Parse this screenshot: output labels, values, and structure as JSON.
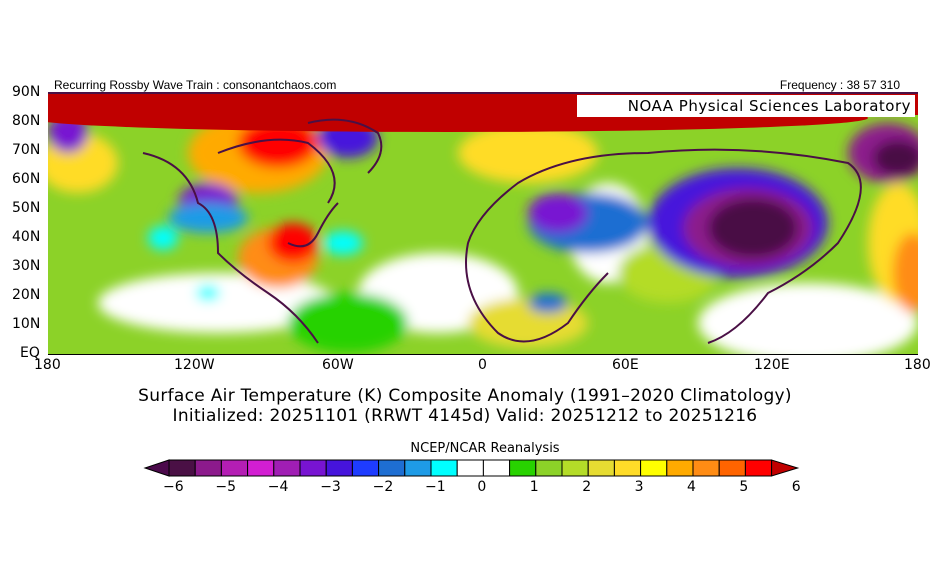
{
  "header": {
    "left_text": "Recurring Rossby Wave Train : consonantchaos.com",
    "right_text": "Frequency : 38 57 310",
    "logo_text": "NOAA Physical Sciences Laboratory"
  },
  "map": {
    "lat_labels": [
      "90N",
      "80N",
      "70N",
      "60N",
      "50N",
      "40N",
      "30N",
      "20N",
      "10N",
      "EQ"
    ],
    "lon_labels": [
      "180",
      "120W",
      "60W",
      "0",
      "60E",
      "120E",
      "180"
    ]
  },
  "title": {
    "line1": "Surface Air Temperature (K) Composite Anomaly (1991–2020 Climatology)",
    "line2": "Initialized: 20251101 (RRWT 4145d) Valid: 20251212 to 20251216"
  },
  "colorbar": {
    "source": "NCEP/NCAR Reanalysis",
    "tick_labels": [
      "-6",
      "-5",
      "-4",
      "-3",
      "-2",
      "-1",
      "0",
      "1",
      "2",
      "3",
      "4",
      "5",
      "6"
    ],
    "colors": [
      "#4a1045",
      "#8c1a8c",
      "#b41eb4",
      "#d21ed2",
      "#a01eb4",
      "#7814d2",
      "#4614dc",
      "#1e3cff",
      "#1e6ed2",
      "#1e9be6",
      "#00ffff",
      "#ffffff",
      "#ffffff",
      "#28d200",
      "#8cd228",
      "#b4dc28",
      "#e6dc32",
      "#ffdc28",
      "#ffff00",
      "#ffaa00",
      "#ff8c14",
      "#ff6400",
      "#ff0000"
    ],
    "low_extend_color": "#4b0a4b",
    "high_extend_color": "#c00000"
  }
}
